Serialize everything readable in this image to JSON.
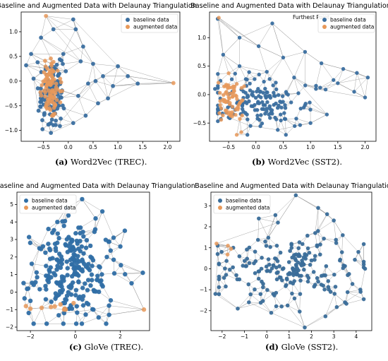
{
  "panels": [
    {
      "caption_letter": "(a)",
      "caption_text": " Word2Vec (TREC).",
      "chart_data": {
        "type": "scatter",
        "title": "Baseline and Augmented Data with Delaunay Triangulation",
        "xlabel": "",
        "ylabel": "",
        "xlim": [
          -0.95,
          2.25
        ],
        "ylim": [
          -1.22,
          1.4
        ],
        "xticks": [
          -0.5,
          0.0,
          0.5,
          1.0,
          1.5,
          2.0
        ],
        "xtick_labels": [
          "−0.5",
          "0.0",
          "0.5",
          "1.0",
          "1.5",
          "2.0"
        ],
        "yticks": [
          -1.0,
          -0.5,
          0.0,
          0.5,
          1.0
        ],
        "ytick_labels": [
          "−1.0",
          "−0.5",
          "0.0",
          "0.5",
          "1.0"
        ],
        "legend_position": "top-right",
        "legend": [
          "baseline data",
          "augmented data"
        ],
        "annotation": "",
        "series": [
          {
            "name": "baseline data",
            "color": "#3b6fa0",
            "cluster": {
              "center": [
                -0.35,
                -0.2
              ],
              "spread": [
                0.12,
                0.3
              ],
              "count": 140
            },
            "outliers": [
              [
                -0.85,
                0.32
              ],
              [
                -0.75,
                0.55
              ],
              [
                -0.55,
                0.88
              ],
              [
                -0.3,
                1.05
              ],
              [
                0.1,
                1.25
              ],
              [
                0.15,
                1.05
              ],
              [
                0.3,
                0.7
              ],
              [
                0.5,
                0.35
              ],
              [
                0.7,
                0.1
              ],
              [
                0.9,
                -0.1
              ],
              [
                1.2,
                0.1
              ],
              [
                1.4,
                -0.05
              ],
              [
                0.6,
                -0.45
              ],
              [
                0.35,
                -0.7
              ],
              [
                0.1,
                -0.85
              ],
              [
                -0.35,
                -1.05
              ],
              [
                -0.6,
                -0.6
              ],
              [
                -0.7,
                0.05
              ],
              [
                0.25,
                0.4
              ],
              [
                -0.1,
                0.55
              ],
              [
                0.55,
                0.0
              ],
              [
                0.2,
                -0.3
              ],
              [
                -0.05,
                0.2
              ],
              [
                0.8,
                -0.35
              ],
              [
                1.0,
                0.3
              ],
              [
                0.4,
                -0.05
              ]
            ]
          },
          {
            "name": "augmented data",
            "color": "#e8995a",
            "cluster": {
              "center": [
                -0.35,
                -0.15
              ],
              "spread": [
                0.1,
                0.25
              ],
              "count": 90
            },
            "outliers": [
              [
                -0.45,
                1.32
              ],
              [
                2.12,
                -0.04
              ],
              [
                -0.42,
                0.25
              ]
            ]
          }
        ]
      }
    },
    {
      "caption_letter": "(b)",
      "caption_text": " Word2Vec (SST2).",
      "chart_data": {
        "type": "scatter",
        "title": "Baseline and Augmented Data with Delaunay Triangulation",
        "xlabel": "",
        "ylabel": "",
        "xlim": [
          -0.85,
          2.2
        ],
        "ylim": [
          -0.82,
          1.45
        ],
        "xticks": [
          -0.5,
          0.0,
          0.5,
          1.0,
          1.5,
          2.0
        ],
        "xtick_labels": [
          "−0.5",
          "0.0",
          "0.5",
          "1.0",
          "1.5",
          "2.0"
        ],
        "yticks": [
          -0.5,
          0.0,
          0.5,
          1.0
        ],
        "ytick_labels": [
          "−0.5",
          "0.0",
          "0.5",
          "1.0"
        ],
        "legend_position": "top-right",
        "legend": [
          "baseline data",
          "augmented data"
        ],
        "annotation": "Furthest Point",
        "series": [
          {
            "name": "baseline data",
            "color": "#3b6fa0",
            "cluster": {
              "center": [
                0.1,
                -0.15
              ],
              "spread": [
                0.45,
                0.25
              ],
              "count": 160
            },
            "outliers": [
              [
                -0.7,
                1.33
              ],
              [
                0.3,
                1.25
              ],
              [
                -0.6,
                0.7
              ],
              [
                -0.3,
                0.5
              ],
              [
                0.5,
                0.65
              ],
              [
                0.9,
                0.75
              ],
              [
                1.2,
                0.55
              ],
              [
                1.6,
                0.45
              ],
              [
                1.85,
                0.38
              ],
              [
                2.05,
                0.3
              ],
              [
                1.5,
                0.2
              ],
              [
                1.8,
                0.05
              ],
              [
                2.0,
                -0.05
              ],
              [
                1.3,
                -0.35
              ],
              [
                1.0,
                -0.5
              ],
              [
                0.4,
                -0.62
              ],
              [
                -0.1,
                -0.55
              ],
              [
                -0.5,
                -0.4
              ],
              [
                -0.75,
                0.1
              ],
              [
                0.7,
                0.3
              ],
              [
                0.2,
                0.4
              ],
              [
                1.1,
                0.1
              ],
              [
                -0.3,
                1.0
              ],
              [
                0.05,
                0.85
              ]
            ]
          },
          {
            "name": "augmented data",
            "color": "#e8995a",
            "cluster": {
              "center": [
                -0.45,
                -0.1
              ],
              "spread": [
                0.1,
                0.2
              ],
              "count": 70
            },
            "outliers": [
              [
                -0.68,
                1.35
              ],
              [
                -0.55,
                0.15
              ]
            ]
          }
        ]
      }
    },
    {
      "caption_letter": "(c)",
      "caption_text": " GloVe (TREC).",
      "chart_data": {
        "type": "scatter",
        "title": "Baseline and Augmented Data with Delaunay Triangulation",
        "xlabel": "",
        "ylabel": "",
        "xlim": [
          -2.6,
          3.3
        ],
        "ylim": [
          -2.2,
          5.7
        ],
        "xticks": [
          -2,
          0,
          2
        ],
        "xtick_labels": [
          "−2",
          "0",
          "2"
        ],
        "yticks": [
          -2,
          -1,
          0,
          1,
          2,
          3,
          4,
          5
        ],
        "ytick_labels": [
          "−2",
          "−1",
          "0",
          "1",
          "2",
          "3",
          "4",
          "5"
        ],
        "legend_position": "top-left",
        "legend": [
          "baseline data",
          "augmented data"
        ],
        "annotation": "",
        "series": [
          {
            "name": "baseline data",
            "color": "#2f6ea5",
            "cluster": {
              "center": [
                -0.2,
                1.0
              ],
              "spread": [
                0.9,
                1.3
              ],
              "count": 230
            },
            "outliers": [
              [
                0.3,
                5.3
              ],
              [
                -0.4,
                4.8
              ],
              [
                1.2,
                4.6
              ],
              [
                2.2,
                3.5
              ],
              [
                2.0,
                2.6
              ],
              [
                3.0,
                1.1
              ],
              [
                2.5,
                0.5
              ],
              [
                -2.1,
                0.2
              ],
              [
                -2.0,
                -0.5
              ],
              [
                -1.6,
                2.5
              ],
              [
                -1.2,
                3.6
              ],
              [
                1.5,
                -1.3
              ],
              [
                0.8,
                -1.0
              ],
              [
                -0.5,
                -1.2
              ],
              [
                1.7,
                3.1
              ],
              [
                -0.8,
                4.0
              ],
              [
                0.9,
                4.2
              ],
              [
                1.4,
                2.0
              ]
            ]
          },
          {
            "name": "augmented data",
            "color": "#e8995a",
            "cluster": {
              "center": [
                -1.0,
                -0.8
              ],
              "spread": [
                0.5,
                0.15
              ],
              "count": 6
            },
            "outliers": [
              [
                -2.2,
                -0.8
              ],
              [
                -2.0,
                -0.95
              ],
              [
                3.05,
                -1.0
              ],
              [
                -1.5,
                -0.9
              ],
              [
                -0.5,
                -1.0
              ]
            ]
          }
        ]
      }
    },
    {
      "caption_letter": "(d)",
      "caption_text": " GloVe (SST2).",
      "chart_data": {
        "type": "scatter",
        "title": "Baseline and Augmented Data with Delaunay Triangulation",
        "xlabel": "",
        "ylabel": "",
        "xlim": [
          -2.5,
          4.7
        ],
        "ylim": [
          -2.95,
          3.65
        ],
        "xticks": [
          -2,
          -1,
          0,
          1,
          2,
          3,
          4
        ],
        "xtick_labels": [
          "−2",
          "−1",
          "0",
          "1",
          "2",
          "3",
          "4"
        ],
        "yticks": [
          -2,
          -1,
          0,
          1,
          2,
          3
        ],
        "ytick_labels": [
          "−2",
          "−1",
          "0",
          "1",
          "2",
          "3"
        ],
        "legend_position": "top-left",
        "legend": [
          "baseline data",
          "augmented data"
        ],
        "annotation": "",
        "series": [
          {
            "name": "baseline data",
            "color": "#3a6d99",
            "cluster": {
              "center": [
                1.0,
                0.0
              ],
              "spread": [
                1.6,
                0.8
              ],
              "count": 200
            },
            "outliers": [
              [
                1.3,
                3.5
              ],
              [
                2.3,
                2.9
              ],
              [
                3.0,
                2.3
              ],
              [
                3.4,
                1.6
              ],
              [
                4.1,
                0.8
              ],
              [
                4.4,
                0.0
              ],
              [
                4.2,
                -1.1
              ],
              [
                3.5,
                -1.6
              ],
              [
                1.7,
                -2.8
              ],
              [
                0.2,
                -2.1
              ],
              [
                -1.3,
                -1.9
              ],
              [
                -2.3,
                -1.2
              ],
              [
                -2.2,
                0.7
              ],
              [
                -2.2,
                1.1
              ],
              [
                -1.5,
                1.0
              ],
              [
                0.5,
                2.2
              ],
              [
                2.7,
                2.6
              ],
              [
                -0.8,
                -1.6
              ]
            ]
          },
          {
            "name": "augmented data",
            "color": "#e8995a",
            "cluster": {
              "center": [
                -1.8,
                0.9
              ],
              "spread": [
                0.2,
                0.15
              ],
              "count": 2
            },
            "outliers": [
              [
                -2.25,
                1.2
              ],
              [
                -1.6,
                0.95
              ]
            ]
          }
        ]
      }
    }
  ]
}
